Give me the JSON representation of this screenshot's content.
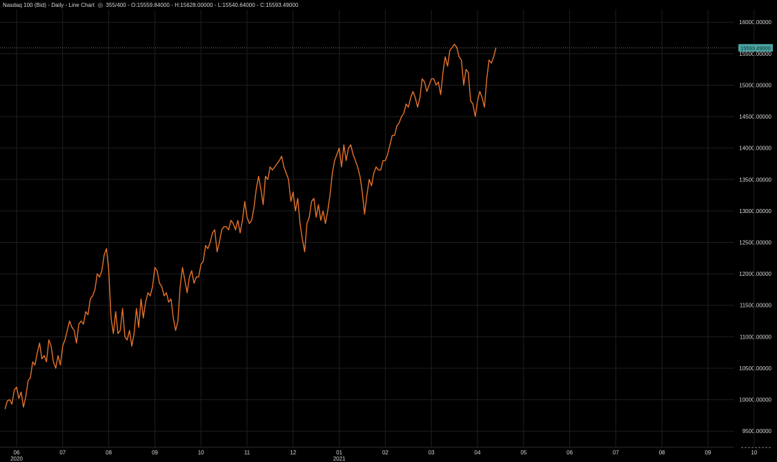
{
  "header": {
    "instrument": "Nasdaq 100 (Bid) - Daily - Line Chart",
    "eye_icon": "eye-icon",
    "ohlc": "355/400 - O:15559.84000 - H:15628.00000 - L:15540.64000 - C:15593.49000"
  },
  "colors": {
    "background": "#000000",
    "grid": "#1f1f1f",
    "line": "#e8742c",
    "price_badge_bg": "#4aa3a0",
    "price_badge_text": "#0b2f2e",
    "text": "#d8d8d8"
  },
  "chart_data": {
    "type": "line",
    "title": "Nasdaq 100 (Bid) - Daily - Line Chart",
    "xlabel": "",
    "ylabel": "",
    "ylim": [
      9250,
      16200
    ],
    "y_ticks": [
      "9500.00000",
      "10000.00000",
      "10500.00000",
      "11000.00000",
      "11500.00000",
      "12000.00000",
      "12500.00000",
      "13000.00000",
      "13500.00000",
      "14000.00000",
      "14500.00000",
      "15000.00000",
      "15500.00000",
      "16000.00000"
    ],
    "y_tick_values": [
      9500,
      10000,
      10500,
      11000,
      11500,
      12000,
      12500,
      13000,
      13500,
      14000,
      14500,
      15000,
      15500,
      16000
    ],
    "x_ticks": [
      "06",
      "07",
      "08",
      "09",
      "10",
      "11",
      "12",
      "01",
      "02",
      "03",
      "04",
      "05",
      "06",
      "07",
      "08",
      "09",
      "10",
      "11"
    ],
    "x_tick_months": [
      0,
      1,
      2,
      3,
      4,
      5,
      6,
      7,
      8,
      9,
      10,
      11,
      12,
      13,
      14,
      15,
      16,
      17
    ],
    "year_labels": [
      {
        "label": "2020",
        "month": 0
      },
      {
        "label": "2021",
        "month": 7
      }
    ],
    "last_price_label": "15593.49000",
    "last_price": 15593.49,
    "grid": true,
    "series": [
      {
        "values": [
          [
            -0.25,
            9850
          ],
          [
            -0.2,
            9980
          ],
          [
            -0.15,
            10000
          ],
          [
            -0.1,
            9930
          ],
          [
            -0.05,
            10150
          ],
          [
            0.0,
            10200
          ],
          [
            0.05,
            10020
          ],
          [
            0.1,
            10120
          ],
          [
            0.15,
            9880
          ],
          [
            0.2,
            10050
          ],
          [
            0.25,
            10300
          ],
          [
            0.3,
            10350
          ],
          [
            0.35,
            10600
          ],
          [
            0.4,
            10550
          ],
          [
            0.45,
            10750
          ],
          [
            0.5,
            10900
          ],
          [
            0.55,
            10650
          ],
          [
            0.6,
            10700
          ],
          [
            0.65,
            10600
          ],
          [
            0.7,
            10950
          ],
          [
            0.75,
            10850
          ],
          [
            0.8,
            10600
          ],
          [
            0.85,
            10500
          ],
          [
            0.9,
            10700
          ],
          [
            0.95,
            10550
          ],
          [
            1.0,
            10850
          ],
          [
            1.05,
            10950
          ],
          [
            1.1,
            11100
          ],
          [
            1.15,
            11250
          ],
          [
            1.2,
            11150
          ],
          [
            1.25,
            11100
          ],
          [
            1.3,
            10900
          ],
          [
            1.35,
            11200
          ],
          [
            1.4,
            11250
          ],
          [
            1.45,
            11200
          ],
          [
            1.5,
            11400
          ],
          [
            1.55,
            11350
          ],
          [
            1.6,
            11600
          ],
          [
            1.65,
            11650
          ],
          [
            1.7,
            11750
          ],
          [
            1.75,
            12000
          ],
          [
            1.8,
            11950
          ],
          [
            1.85,
            12050
          ],
          [
            1.9,
            12300
          ],
          [
            1.95,
            12400
          ],
          [
            2.0,
            12050
          ],
          [
            2.05,
            11300
          ],
          [
            2.1,
            11050
          ],
          [
            2.15,
            11400
          ],
          [
            2.2,
            11050
          ],
          [
            2.25,
            11100
          ],
          [
            2.3,
            11450
          ],
          [
            2.35,
            11000
          ],
          [
            2.4,
            10950
          ],
          [
            2.45,
            11100
          ],
          [
            2.5,
            10850
          ],
          [
            2.55,
            11050
          ],
          [
            2.6,
            11450
          ],
          [
            2.65,
            11150
          ],
          [
            2.7,
            11600
          ],
          [
            2.75,
            11300
          ],
          [
            2.8,
            11550
          ],
          [
            2.85,
            11700
          ],
          [
            2.9,
            11650
          ],
          [
            2.95,
            11800
          ],
          [
            3.0,
            12100
          ],
          [
            3.05,
            12050
          ],
          [
            3.1,
            11850
          ],
          [
            3.15,
            11800
          ],
          [
            3.2,
            11650
          ],
          [
            3.25,
            11700
          ],
          [
            3.3,
            11550
          ],
          [
            3.35,
            11600
          ],
          [
            3.4,
            11300
          ],
          [
            3.45,
            11100
          ],
          [
            3.5,
            11250
          ],
          [
            3.55,
            11800
          ],
          [
            3.6,
            12100
          ],
          [
            3.65,
            11900
          ],
          [
            3.7,
            11700
          ],
          [
            3.75,
            11950
          ],
          [
            3.8,
            12050
          ],
          [
            3.85,
            11850
          ],
          [
            3.9,
            11950
          ],
          [
            3.95,
            11950
          ],
          [
            4.0,
            12150
          ],
          [
            4.05,
            12200
          ],
          [
            4.1,
            12450
          ],
          [
            4.15,
            12400
          ],
          [
            4.2,
            12500
          ],
          [
            4.25,
            12650
          ],
          [
            4.3,
            12700
          ],
          [
            4.35,
            12350
          ],
          [
            4.4,
            12500
          ],
          [
            4.45,
            12700
          ],
          [
            4.5,
            12750
          ],
          [
            4.55,
            12750
          ],
          [
            4.6,
            12700
          ],
          [
            4.65,
            12850
          ],
          [
            4.7,
            12800
          ],
          [
            4.75,
            12700
          ],
          [
            4.8,
            12850
          ],
          [
            4.85,
            12650
          ],
          [
            4.9,
            12850
          ],
          [
            4.95,
            13150
          ],
          [
            5.0,
            12900
          ],
          [
            5.05,
            12800
          ],
          [
            5.1,
            12850
          ],
          [
            5.15,
            13050
          ],
          [
            5.2,
            13350
          ],
          [
            5.25,
            13550
          ],
          [
            5.3,
            13350
          ],
          [
            5.35,
            13100
          ],
          [
            5.4,
            13550
          ],
          [
            5.45,
            13500
          ],
          [
            5.5,
            13700
          ],
          [
            5.55,
            13650
          ],
          [
            5.6,
            13700
          ],
          [
            5.65,
            13750
          ],
          [
            5.7,
            13800
          ],
          [
            5.75,
            13870
          ],
          [
            5.8,
            13700
          ],
          [
            5.85,
            13600
          ],
          [
            5.9,
            13500
          ],
          [
            5.95,
            13150
          ],
          [
            6.0,
            13300
          ],
          [
            6.05,
            13000
          ],
          [
            6.1,
            13200
          ],
          [
            6.15,
            12800
          ],
          [
            6.2,
            12550
          ],
          [
            6.25,
            12350
          ],
          [
            6.3,
            12800
          ],
          [
            6.35,
            12900
          ],
          [
            6.4,
            13150
          ],
          [
            6.45,
            13200
          ],
          [
            6.5,
            12900
          ],
          [
            6.55,
            13100
          ],
          [
            6.6,
            12850
          ],
          [
            6.65,
            13000
          ],
          [
            6.7,
            12800
          ],
          [
            6.75,
            13000
          ],
          [
            6.8,
            13250
          ],
          [
            6.85,
            13600
          ],
          [
            6.9,
            13800
          ],
          [
            6.95,
            13900
          ],
          [
            7.0,
            14000
          ],
          [
            7.05,
            13700
          ],
          [
            7.1,
            14050
          ],
          [
            7.15,
            13800
          ],
          [
            7.2,
            14000
          ],
          [
            7.25,
            14050
          ],
          [
            7.3,
            13900
          ],
          [
            7.35,
            13800
          ],
          [
            7.4,
            13700
          ],
          [
            7.45,
            13550
          ],
          [
            7.5,
            13300
          ],
          [
            7.55,
            12950
          ],
          [
            7.6,
            13250
          ],
          [
            7.65,
            13500
          ],
          [
            7.7,
            13400
          ],
          [
            7.75,
            13600
          ],
          [
            7.8,
            13700
          ],
          [
            7.85,
            13650
          ],
          [
            7.9,
            13650
          ],
          [
            7.95,
            13800
          ],
          [
            8.0,
            13800
          ],
          [
            8.05,
            13900
          ],
          [
            8.1,
            14050
          ],
          [
            8.15,
            14200
          ],
          [
            8.2,
            14200
          ],
          [
            8.25,
            14350
          ],
          [
            8.3,
            14400
          ],
          [
            8.35,
            14500
          ],
          [
            8.4,
            14550
          ],
          [
            8.45,
            14700
          ],
          [
            8.5,
            14650
          ],
          [
            8.55,
            14800
          ],
          [
            8.6,
            14900
          ],
          [
            8.65,
            14800
          ],
          [
            8.7,
            14650
          ],
          [
            8.75,
            14800
          ],
          [
            8.8,
            15100
          ],
          [
            8.85,
            15050
          ],
          [
            8.9,
            14900
          ],
          [
            8.95,
            15000
          ],
          [
            9.0,
            15100
          ],
          [
            9.05,
            15100
          ],
          [
            9.1,
            15000
          ],
          [
            9.15,
            15050
          ],
          [
            9.2,
            14850
          ],
          [
            9.25,
            15200
          ],
          [
            9.3,
            15450
          ],
          [
            9.35,
            15300
          ],
          [
            9.4,
            15550
          ],
          [
            9.45,
            15600
          ],
          [
            9.5,
            15650
          ],
          [
            9.55,
            15600
          ],
          [
            9.6,
            15450
          ],
          [
            9.65,
            15400
          ],
          [
            9.7,
            15000
          ],
          [
            9.75,
            15250
          ],
          [
            9.8,
            15200
          ],
          [
            9.85,
            14750
          ],
          [
            9.9,
            14700
          ],
          [
            9.95,
            14500
          ],
          [
            10.0,
            14750
          ],
          [
            10.05,
            14900
          ],
          [
            10.1,
            14800
          ],
          [
            10.15,
            14650
          ],
          [
            10.2,
            15100
          ],
          [
            10.25,
            15400
          ],
          [
            10.3,
            15350
          ],
          [
            10.35,
            15450
          ],
          [
            10.4,
            15593.49
          ]
        ]
      }
    ]
  }
}
